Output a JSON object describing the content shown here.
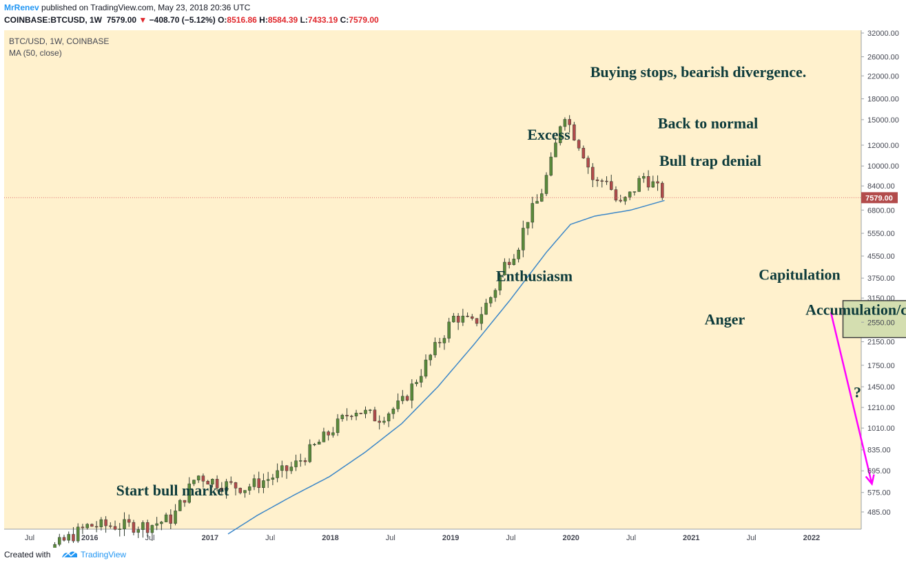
{
  "header": {
    "author": "MrRenev",
    "published_text": "published on TradingView.com, May 23, 2018 20:36 UTC",
    "symbol": "COINBASE:BTCUSD, 1W",
    "last": "7579.00",
    "change": "−408.70 (−5.12%)",
    "open_label": "O:",
    "open": "8516.86",
    "high_label": "H:",
    "high": "8584.39",
    "low_label": "L:",
    "low": "7433.19",
    "close_label": "C:",
    "close": "7579.00"
  },
  "legend": {
    "line1": "BTC/USD, 1W, COINBASE",
    "line2": "MA (50, close)"
  },
  "footer": {
    "created_with": "Created with",
    "brand": "TradingView"
  },
  "colors": {
    "background": "#fff1cd",
    "up_candle": "#5a8a3a",
    "down_candle": "#b24b4b",
    "ma_line": "#3a86c8",
    "price_line": "#e07070",
    "arrows": "#ff00ff",
    "text": "#0d3b3b",
    "box_fill": "#d4deb0"
  },
  "chart_data": {
    "type": "candlestick",
    "scale": "log",
    "ylim": [
      400,
      33000
    ],
    "y_ticks": [
      "32000.00",
      "26000.00",
      "22000.00",
      "18000.00",
      "15000.00",
      "12000.00",
      "10000.00",
      "8400.00",
      "6800.00",
      "5550.00",
      "4550.00",
      "3750.00",
      "3150.00",
      "2550.00",
      "2150.00",
      "1750.00",
      "1450.00",
      "1210.00",
      "1010.00",
      "835.00",
      "695.00",
      "575.00",
      "485.00"
    ],
    "x_ticks": [
      "Jul",
      "2016",
      "Jul",
      "2017",
      "Jul",
      "2018",
      "Jul",
      "2019",
      "Jul",
      "2020",
      "Jul",
      "2021",
      "Jul",
      "2022"
    ],
    "current_price_label": "7579.00",
    "close_anchors": [
      [
        -0.35,
        270
      ],
      [
        0.0,
        430
      ],
      [
        0.25,
        430
      ],
      [
        0.35,
        460
      ],
      [
        0.45,
        670
      ],
      [
        0.55,
        620
      ],
      [
        0.65,
        600
      ],
      [
        0.75,
        650
      ],
      [
        0.85,
        720
      ],
      [
        1.0,
        970
      ],
      [
        1.1,
        1200
      ],
      [
        1.2,
        1100
      ],
      [
        1.3,
        1250
      ],
      [
        1.42,
        1900
      ],
      [
        1.52,
        2700
      ],
      [
        1.6,
        2500
      ],
      [
        1.68,
        3300
      ],
      [
        1.73,
        4300
      ],
      [
        1.78,
        4900
      ],
      [
        1.82,
        6300
      ],
      [
        1.87,
        7500
      ],
      [
        1.93,
        11000
      ],
      [
        1.97,
        16500
      ],
      [
        2.0,
        14000
      ],
      [
        2.05,
        11500
      ],
      [
        2.1,
        8500
      ],
      [
        2.15,
        9000
      ],
      [
        2.2,
        7000
      ],
      [
        2.25,
        7800
      ],
      [
        2.3,
        9200
      ],
      [
        2.35,
        8400
      ],
      [
        2.39,
        7579
      ]
    ],
    "ma_anchors": [
      [
        0.58,
        400
      ],
      [
        0.7,
        470
      ],
      [
        0.85,
        560
      ],
      [
        1.0,
        660
      ],
      [
        1.15,
        820
      ],
      [
        1.3,
        1050
      ],
      [
        1.45,
        1450
      ],
      [
        1.6,
        2100
      ],
      [
        1.75,
        3100
      ],
      [
        1.9,
        4700
      ],
      [
        2.0,
        6000
      ],
      [
        2.1,
        6450
      ],
      [
        2.25,
        6800
      ],
      [
        2.39,
        7400
      ]
    ],
    "annotations": [
      {
        "text": "Start bull market",
        "x": 0.35,
        "y": 560
      },
      {
        "text": "Enthusiasm",
        "x": 1.85,
        "y": 3650
      },
      {
        "text": "Excess",
        "x": 1.91,
        "y": 12600
      },
      {
        "text": "Buying stops, bearish divergence.",
        "x": 2.53,
        "y": 21800
      },
      {
        "text": "Back to normal",
        "x": 2.57,
        "y": 13900
      },
      {
        "text": "Bull trap denial",
        "x": 2.58,
        "y": 10000
      },
      {
        "text": "Capitulation",
        "x": 2.95,
        "y": 3700
      },
      {
        "text": "Anger",
        "x": 2.64,
        "y": 2500
      },
      {
        "text": "Accumulation/consolidation",
        "x": 3.35,
        "y": 2720
      },
      {
        "text": "?",
        "x": 3.19,
        "y": 1320
      },
      {
        "text": "?",
        "x": 4.36,
        "y": 2180
      }
    ],
    "box": {
      "x0": 3.13,
      "x1": 3.58,
      "y0": 2230,
      "y1": 3080
    },
    "arrows": [
      {
        "from": [
          3.08,
          2780
        ],
        "to": [
          3.25,
          620
        ]
      },
      {
        "from": [
          3.5,
          2650
        ],
        "to": [
          3.57,
          2020
        ]
      },
      {
        "from": [
          3.58,
          2020
        ],
        "to": [
          3.81,
          475
        ]
      },
      {
        "from": [
          3.58,
          2250
        ],
        "to": [
          3.88,
          6500
        ]
      }
    ]
  }
}
